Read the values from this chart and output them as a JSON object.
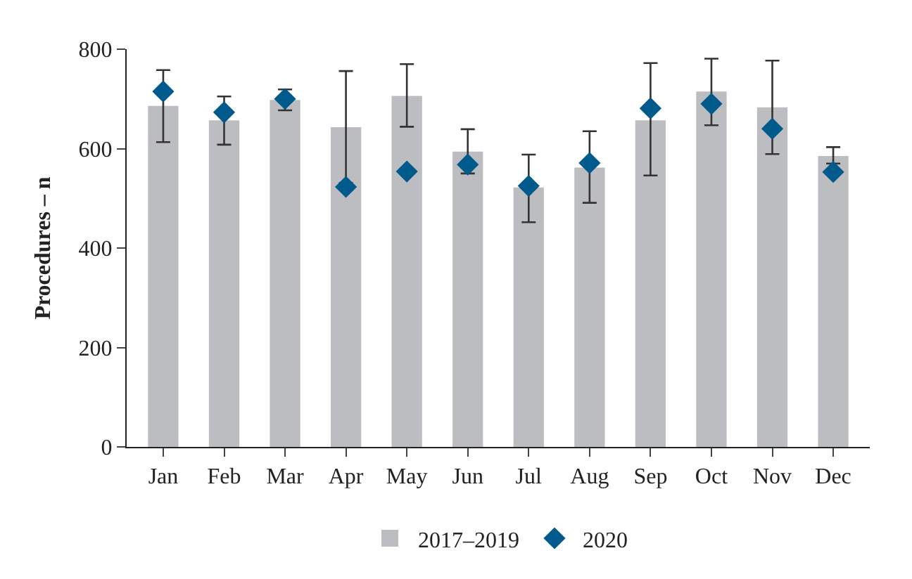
{
  "chart_data": {
    "type": "bar",
    "ylabel": "Procedures – n",
    "categories": [
      "Jan",
      "Feb",
      "Mar",
      "Apr",
      "May",
      "Jun",
      "Jul",
      "Aug",
      "Sep",
      "Oct",
      "Nov",
      "Dec"
    ],
    "series": [
      {
        "name": "2017–2019",
        "color": "#bcbdc0",
        "values": [
          686,
          657,
          698,
          643,
          706,
          594,
          522,
          562,
          657,
          715,
          683,
          585
        ],
        "errors": [
          [
            613,
            758
          ],
          [
            608,
            705
          ],
          [
            677,
            719
          ],
          [
            531,
            756
          ],
          [
            644,
            770
          ],
          [
            550,
            639
          ],
          [
            452,
            588
          ],
          [
            491,
            635
          ],
          [
            546,
            772
          ],
          [
            647,
            781
          ],
          [
            589,
            777
          ],
          [
            570,
            603
          ]
        ]
      },
      {
        "name": "2020",
        "type": "scatter",
        "color": "#005a8c",
        "marker": "diamond",
        "values": [
          715,
          673,
          700,
          523,
          554,
          568,
          525,
          571,
          681,
          690,
          640,
          553
        ]
      }
    ],
    "ylim": [
      0,
      800
    ],
    "yticks": [
      0,
      200,
      400,
      600,
      800
    ],
    "legend": "bottom"
  }
}
